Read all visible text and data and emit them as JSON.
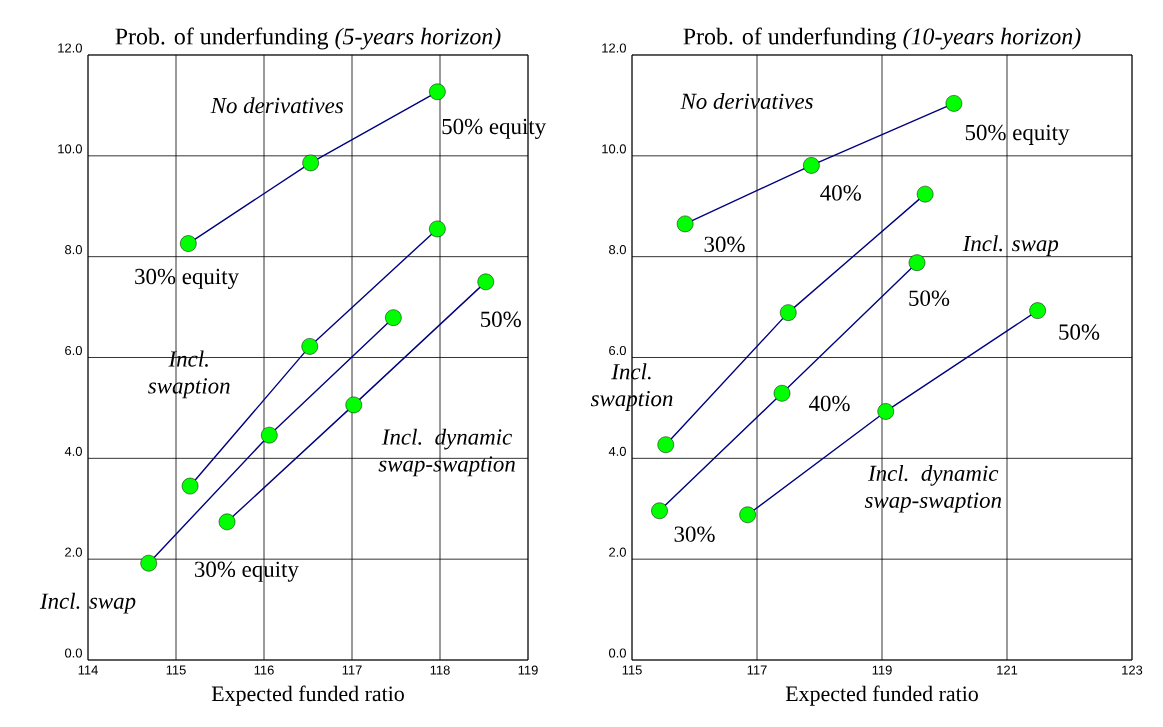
{
  "chart_data": [
    {
      "type": "line",
      "title": "Prob. of underfunding *(5-years horizon)*",
      "xlabel": "Expected funded ratio",
      "xlim": [
        114,
        119
      ],
      "xticks": [
        114,
        115,
        116,
        117,
        118,
        119
      ],
      "ylim": [
        0,
        12
      ],
      "yticks": [
        {
          "value": 0,
          "label": "0.0"
        },
        {
          "value": 2,
          "label": "2.0"
        },
        {
          "value": 4,
          "label": "4.0"
        },
        {
          "value": 6,
          "label": "6.0"
        },
        {
          "value": 8,
          "label": "8.0"
        },
        {
          "value": 10,
          "label": "10.0"
        },
        {
          "value": 12,
          "label": "12.0"
        }
      ],
      "grid": true,
      "marker": "circle",
      "series": [
        {
          "color": "#000080",
          "x": [
            115.14,
            116.53,
            117.97
          ],
          "values": [
            8.26,
            9.86,
            11.27
          ]
        },
        {
          "color": "#000080",
          "x": [
            115.16,
            116.52,
            117.97
          ],
          "values": [
            3.45,
            6.22,
            8.55
          ]
        },
        {
          "color": "#000080",
          "x": [
            114.69,
            116.06,
            117.47
          ],
          "values": [
            1.92,
            4.46,
            6.79
          ]
        },
        {
          "color": "#000080",
          "x": [
            115.58,
            117.02,
            118.52
          ],
          "values": [
            2.74,
            5.06,
            7.5
          ]
        }
      ],
      "annotations": [
        "No derivatives",
        "50% equity",
        "30% equity",
        "Incl. swaption",
        "Incl. dynamic swap-swaption",
        "50%",
        "30% equity",
        "Incl. swap"
      ]
    },
    {
      "type": "line",
      "title": "Prob. of underfunding *(10-years horizon)*",
      "xlabel": "Expected funded ratio",
      "xlim": [
        115,
        123
      ],
      "xticks": [
        115,
        117,
        119,
        121,
        123
      ],
      "ylim": [
        0,
        12
      ],
      "yticks": [
        {
          "value": 0,
          "label": "0.0"
        },
        {
          "value": 2,
          "label": "2.0"
        },
        {
          "value": 4,
          "label": "4.0"
        },
        {
          "value": 6,
          "label": "6.0"
        },
        {
          "value": 8,
          "label": "8.0"
        },
        {
          "value": 10,
          "label": "10.0"
        },
        {
          "value": 12,
          "label": "12.0"
        }
      ],
      "grid": true,
      "marker": "circle",
      "series": [
        {
          "color": "#000080",
          "x": [
            115.85,
            117.87,
            120.15
          ],
          "values": [
            8.65,
            9.81,
            11.04
          ]
        },
        {
          "color": "#000080",
          "x": [
            115.54,
            117.5,
            119.69
          ],
          "values": [
            4.27,
            6.89,
            9.24
          ]
        },
        {
          "color": "#000080",
          "x": [
            115.44,
            117.4,
            119.56
          ],
          "values": [
            2.96,
            5.29,
            7.88
          ]
        },
        {
          "color": "#000080",
          "x": [
            116.85,
            119.06,
            121.49
          ],
          "values": [
            2.88,
            4.93,
            6.93
          ]
        }
      ],
      "annotations": [
        "No derivatives",
        "50% equity",
        "40%",
        "30%",
        "Incl. swap",
        "50%",
        "50%",
        "Incl. swaption",
        "40%",
        "Incl. dynamic swap-swaption",
        "30%"
      ]
    }
  ]
}
